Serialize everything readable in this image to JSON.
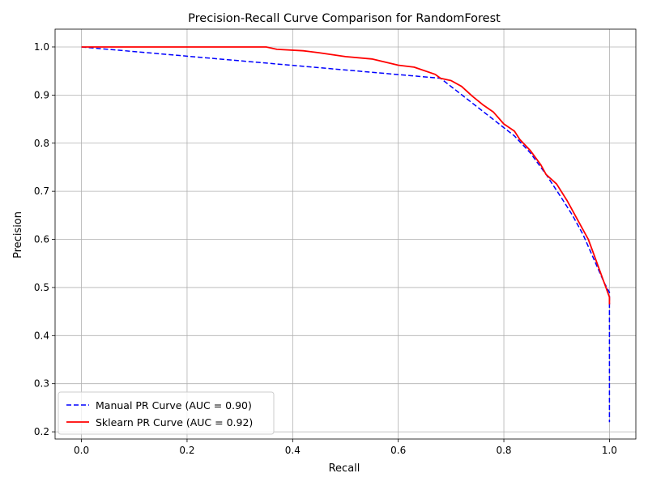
{
  "chart_data": {
    "type": "line",
    "title": "Precision-Recall Curve Comparison for RandomForest",
    "xlabel": "Recall",
    "ylabel": "Precision",
    "xlim": [
      -0.05,
      1.05
    ],
    "ylim": [
      0.185,
      1.037
    ],
    "xticks": [
      0.0,
      0.2,
      0.4,
      0.6,
      0.8,
      1.0
    ],
    "xtick_labels": [
      "0.0",
      "0.2",
      "0.4",
      "0.6",
      "0.8",
      "1.0"
    ],
    "yticks": [
      0.2,
      0.3,
      0.4,
      0.5,
      0.6,
      0.7,
      0.8,
      0.9,
      1.0
    ],
    "ytick_labels": [
      "0.2",
      "0.3",
      "0.4",
      "0.5",
      "0.6",
      "0.7",
      "0.8",
      "0.9",
      "1.0"
    ],
    "grid": true,
    "legend_position": "lower-left",
    "series": [
      {
        "name": "Manual PR Curve (AUC = 0.90)",
        "color": "#0000ff",
        "style": "dashed",
        "points": [
          [
            0.0,
            1.0
          ],
          [
            0.68,
            0.935
          ],
          [
            0.82,
            0.815
          ],
          [
            0.85,
            0.78
          ],
          [
            0.88,
            0.735
          ],
          [
            0.91,
            0.685
          ],
          [
            0.93,
            0.65
          ],
          [
            0.95,
            0.61
          ],
          [
            0.97,
            0.56
          ],
          [
            0.99,
            0.51
          ],
          [
            1.0,
            0.49
          ],
          [
            1.0,
            0.22
          ]
        ]
      },
      {
        "name": "Sklearn PR Curve (AUC = 0.92)",
        "color": "#ff0000",
        "style": "solid",
        "points": [
          [
            0.0,
            1.0
          ],
          [
            0.35,
            1.0
          ],
          [
            0.37,
            0.995
          ],
          [
            0.42,
            0.992
          ],
          [
            0.45,
            0.988
          ],
          [
            0.5,
            0.98
          ],
          [
            0.55,
            0.975
          ],
          [
            0.6,
            0.962
          ],
          [
            0.63,
            0.958
          ],
          [
            0.67,
            0.943
          ],
          [
            0.68,
            0.935
          ],
          [
            0.7,
            0.93
          ],
          [
            0.72,
            0.918
          ],
          [
            0.74,
            0.898
          ],
          [
            0.76,
            0.88
          ],
          [
            0.78,
            0.865
          ],
          [
            0.8,
            0.84
          ],
          [
            0.82,
            0.825
          ],
          [
            0.83,
            0.808
          ],
          [
            0.85,
            0.785
          ],
          [
            0.87,
            0.755
          ],
          [
            0.88,
            0.735
          ],
          [
            0.9,
            0.715
          ],
          [
            0.92,
            0.68
          ],
          [
            0.94,
            0.64
          ],
          [
            0.96,
            0.6
          ],
          [
            0.97,
            0.57
          ],
          [
            0.98,
            0.54
          ],
          [
            0.99,
            0.51
          ],
          [
            1.0,
            0.48
          ],
          [
            1.0,
            0.465
          ]
        ]
      }
    ]
  }
}
